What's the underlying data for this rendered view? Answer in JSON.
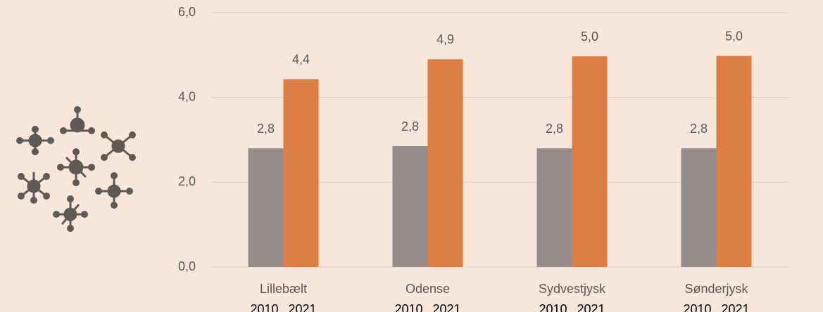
{
  "chart_data": {
    "type": "bar",
    "categories": [
      "Lillebælt",
      "Odense",
      "Sydvestjysk",
      "Sønderjysk"
    ],
    "series": [
      {
        "name": "2010",
        "color": "#968c8a",
        "values": [
          2.8,
          2.85,
          2.8,
          2.8
        ],
        "value_labels": [
          "2,8",
          "2,8",
          "2,8",
          "2,8"
        ]
      },
      {
        "name": "2021",
        "color": "#dd7f45",
        "values": [
          4.43,
          4.9,
          4.97,
          4.98
        ],
        "value_labels": [
          "4,4",
          "4,9",
          "5,0",
          "5,0"
        ]
      }
    ],
    "ylim": [
      0,
      6
    ],
    "yticks": [
      {
        "value": 0,
        "label": "0,0"
      },
      {
        "value": 2,
        "label": "2,0"
      },
      {
        "value": 4,
        "label": "4,0"
      },
      {
        "value": 6,
        "label": "6,0"
      }
    ],
    "grid": true
  }
}
